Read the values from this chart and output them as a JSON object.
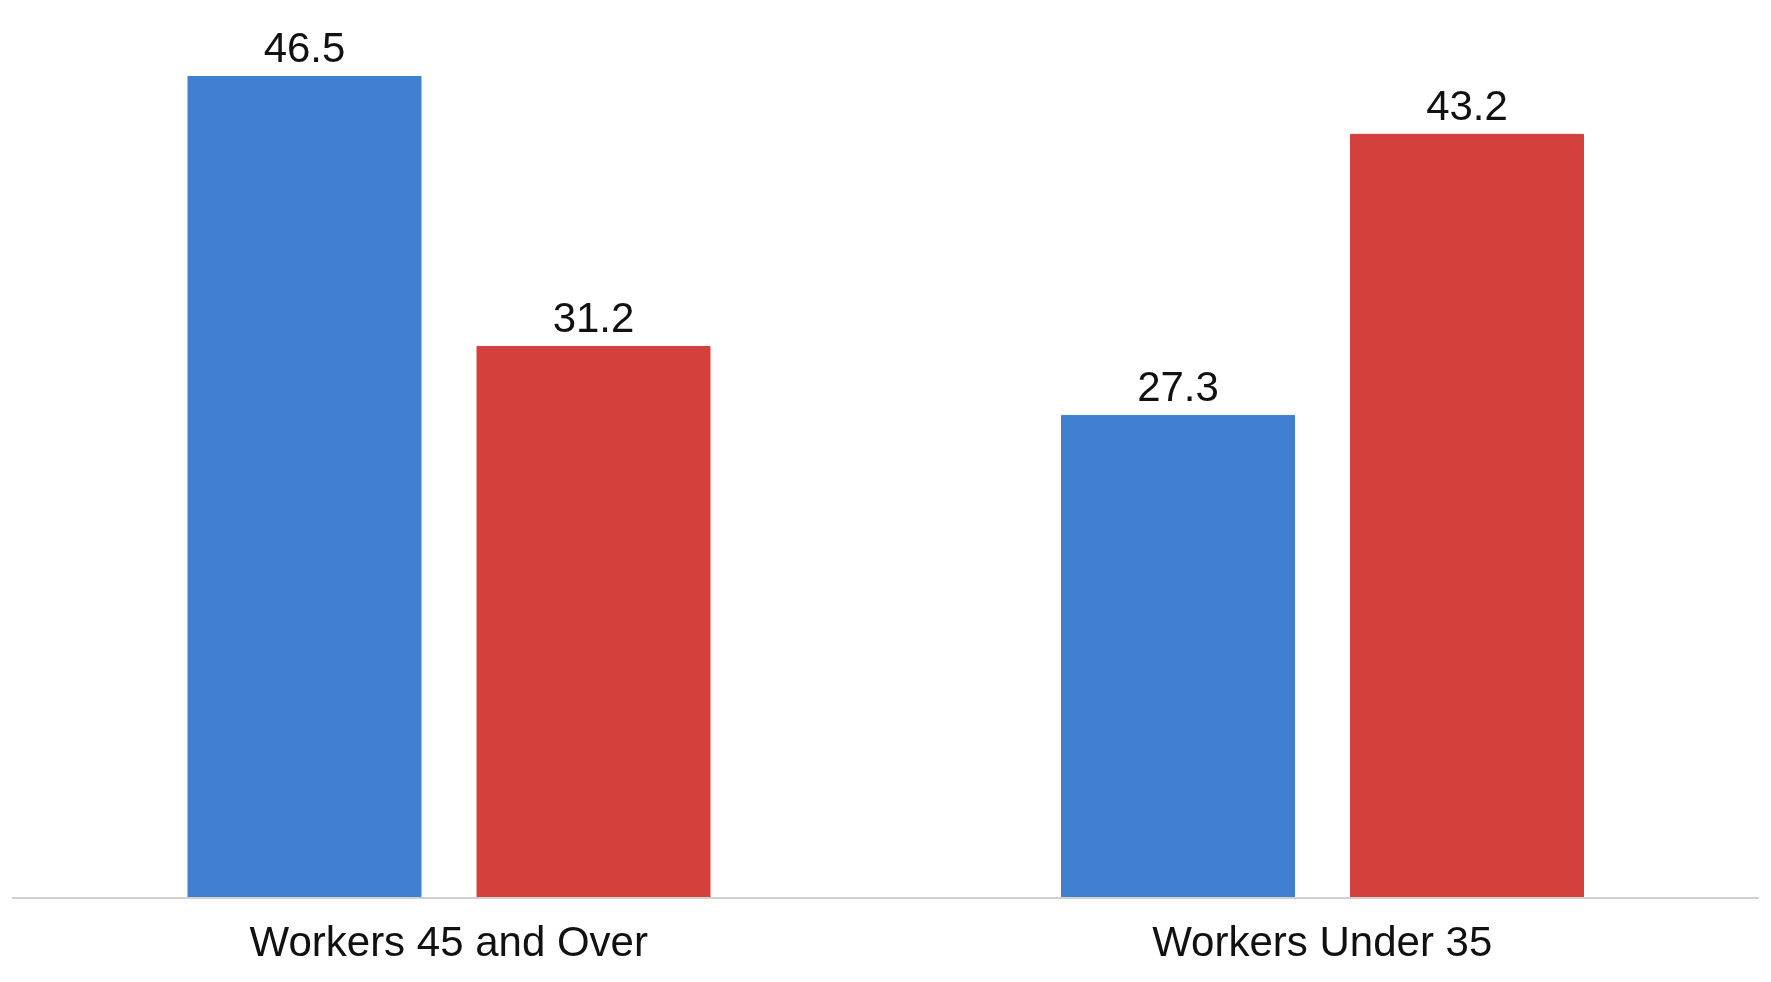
{
  "chart_data": {
    "type": "bar",
    "categories": [
      "Workers 45 and Over",
      "Workers Under 35"
    ],
    "series": [
      {
        "color": "#3f80d3",
        "values": [
          46.5,
          27.3
        ]
      },
      {
        "color": "#d4403b",
        "values": [
          31.2,
          43.2
        ]
      }
    ],
    "data_labels": true,
    "grid": false,
    "legend": false
  }
}
